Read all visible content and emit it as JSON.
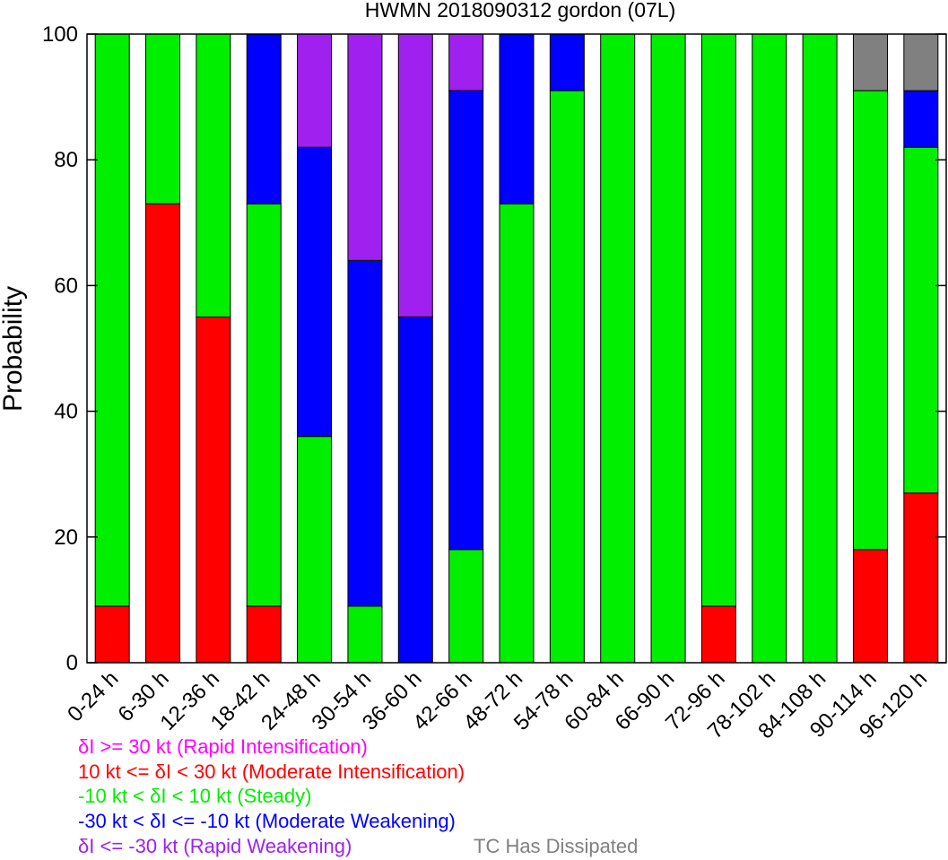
{
  "chart_data": {
    "type": "bar",
    "stacked": true,
    "title": "HWMN 2018090312 gordon (07L)",
    "xlabel": "",
    "ylabel": "Probability",
    "ylim": [
      0,
      100
    ],
    "yticks": [
      0,
      20,
      40,
      60,
      80,
      100
    ],
    "categories": [
      "0-24 h",
      "6-30 h",
      "12-36 h",
      "18-42 h",
      "24-48 h",
      "30-54 h",
      "36-60 h",
      "42-66 h",
      "48-72 h",
      "54-78 h",
      "60-84 h",
      "66-90 h",
      "72-96 h",
      "78-102 h",
      "84-108 h",
      "90-114 h",
      "96-120 h"
    ],
    "series": [
      {
        "key": "moderate_intensification",
        "color": "#ff0000",
        "values": [
          9,
          73,
          55,
          9,
          0,
          0,
          0,
          0,
          0,
          0,
          0,
          0,
          9,
          0,
          0,
          18,
          27
        ]
      },
      {
        "key": "steady",
        "color": "#00ee00",
        "values": [
          91,
          27,
          45,
          64,
          36,
          9,
          0,
          18,
          73,
          91,
          100,
          100,
          91,
          100,
          100,
          73,
          55
        ]
      },
      {
        "key": "moderate_weakening",
        "color": "#0000ff",
        "values": [
          0,
          0,
          0,
          27,
          46,
          55,
          55,
          73,
          27,
          9,
          0,
          0,
          0,
          0,
          0,
          0,
          9
        ]
      },
      {
        "key": "rapid_weakening",
        "color": "#a020f0",
        "values": [
          0,
          0,
          0,
          0,
          18,
          36,
          45,
          9,
          0,
          0,
          0,
          0,
          0,
          0,
          0,
          0,
          0
        ]
      },
      {
        "key": "dissipated",
        "color": "#808080",
        "values": [
          0,
          0,
          0,
          0,
          0,
          0,
          0,
          0,
          0,
          0,
          0,
          0,
          0,
          0,
          0,
          9,
          9
        ]
      }
    ],
    "legend": [
      {
        "text": "δI >= 30 kt (Rapid Intensification)",
        "color": "#ff00ff"
      },
      {
        "text": "10 kt <= δI < 30 kt (Moderate Intensification)",
        "color": "#ff0000"
      },
      {
        "text": "-10 kt < δI < 10 kt (Steady)",
        "color": "#00ee00"
      },
      {
        "text": "-30 kt < δI <= -10 kt (Moderate Weakening)",
        "color": "#0000ff"
      },
      {
        "text": "δI <= -30 kt (Rapid Weakening)",
        "color": "#a020f0"
      },
      {
        "text": "TC Has Dissipated",
        "color": "#808080"
      }
    ],
    "legend_placement": "bottom-left",
    "grid": false
  }
}
